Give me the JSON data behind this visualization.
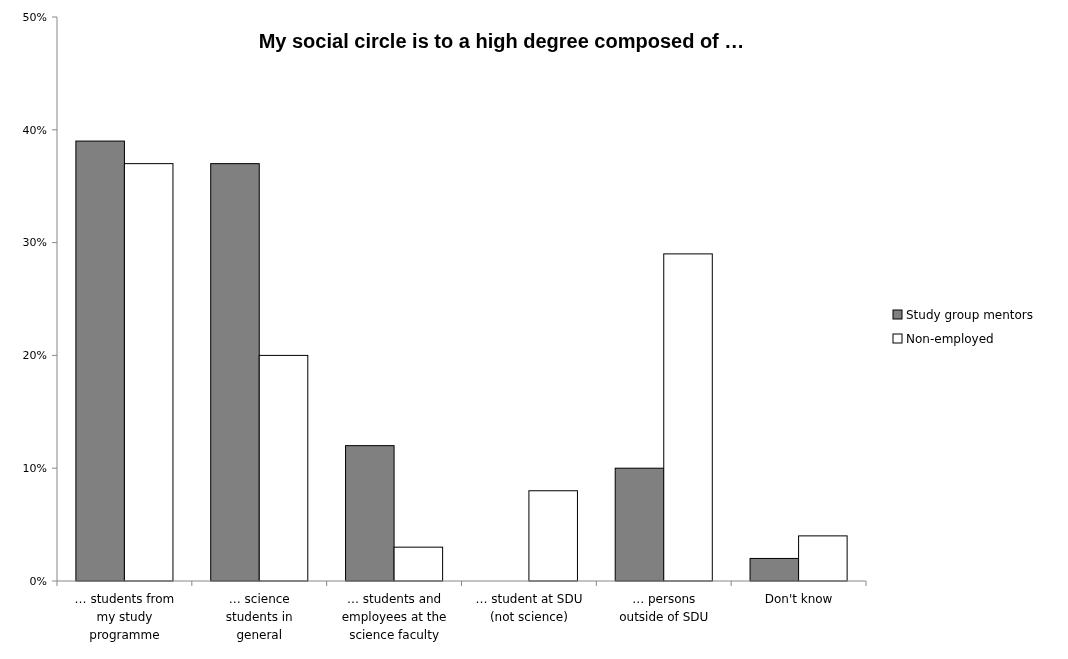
{
  "chart_data": {
    "type": "bar",
    "title": "My social circle is to a high degree composed of …",
    "categories": [
      "… students from my study programme",
      "… science students in general",
      "… students and employees at the science faculty",
      "… student at SDU (not science)",
      "… persons outside of SDU",
      "Don't know"
    ],
    "series": [
      {
        "name": "Study group mentors",
        "color": "#808080",
        "values": [
          39,
          37,
          12,
          null,
          10,
          2
        ]
      },
      {
        "name": "Non-employed",
        "color": "#ffffff",
        "values": [
          37,
          20,
          3,
          8,
          29,
          4
        ]
      }
    ],
    "ylim": [
      0,
      50
    ],
    "yticks": [
      {
        "value": 0,
        "label": "0%"
      },
      {
        "value": 10,
        "label": "10%"
      },
      {
        "value": 20,
        "label": "20%"
      },
      {
        "value": 30,
        "label": "30%"
      },
      {
        "value": 40,
        "label": "40%"
      },
      {
        "value": 50,
        "label": "50%"
      }
    ],
    "grid": false,
    "legend": "right"
  }
}
